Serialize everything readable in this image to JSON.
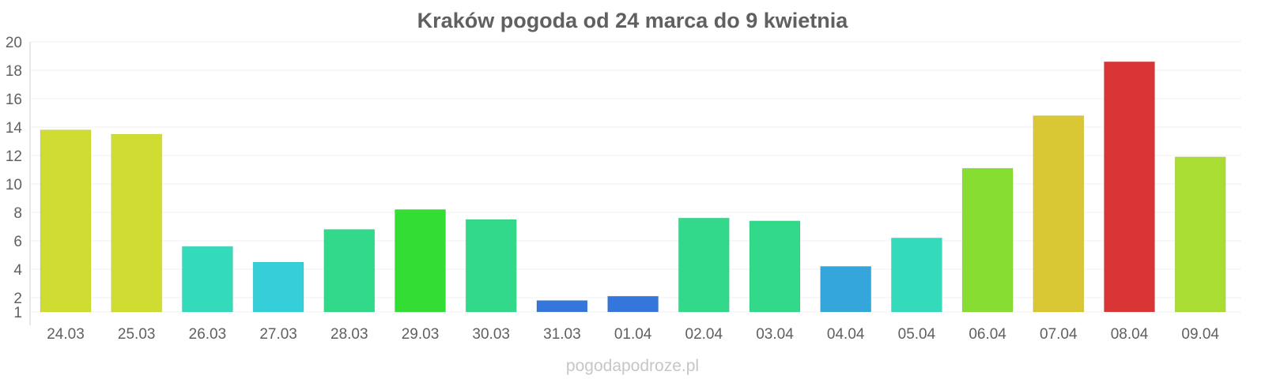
{
  "chart_data": {
    "type": "bar",
    "title": "Kraków pogoda od 24 marca do 9 kwietnia",
    "xlabel": "",
    "ylabel": "",
    "categories": [
      "24.03",
      "25.03",
      "26.03",
      "27.03",
      "28.03",
      "29.03",
      "30.03",
      "31.03",
      "01.04",
      "02.04",
      "03.04",
      "04.04",
      "05.04",
      "06.04",
      "07.04",
      "08.04",
      "09.04"
    ],
    "values": [
      13.8,
      13.5,
      5.6,
      4.5,
      6.8,
      8.2,
      7.5,
      1.8,
      2.1,
      7.6,
      7.4,
      4.2,
      6.2,
      11.1,
      14.8,
      18.6,
      11.9
    ],
    "colors": [
      "#cfdd32",
      "#cfdd32",
      "#33dbbb",
      "#34cfd9",
      "#33d98a",
      "#33dd33",
      "#33d98a",
      "#3476db",
      "#3476db",
      "#33d98a",
      "#33d98a",
      "#34a6db",
      "#33dbbb",
      "#88dd33",
      "#d9c833",
      "#d93535",
      "#aadd33"
    ],
    "ylim": [
      1,
      20
    ],
    "yticks": [
      1,
      2,
      4,
      6,
      8,
      10,
      12,
      14,
      16,
      18,
      20
    ],
    "grid": true,
    "legend": "none"
  },
  "watermark": "pogodapodroze.pl"
}
